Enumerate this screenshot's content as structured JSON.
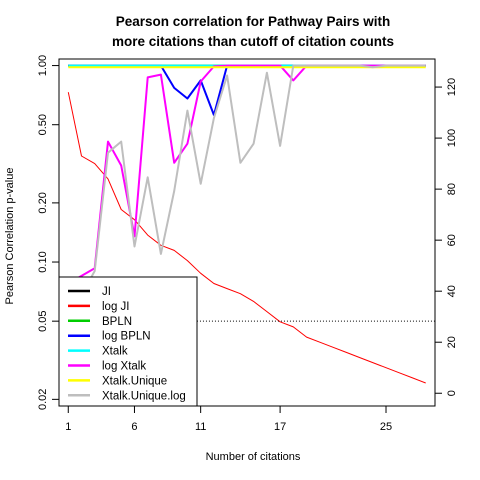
{
  "chart_data": {
    "type": "line",
    "title_lines": [
      "Pearson correlation for Pathway Pairs with",
      "more citations than cutoff of citation counts"
    ],
    "xlabel": "Number of citations",
    "ylabel": "Pearson Correlation p-value",
    "x_ticks": [
      1,
      6,
      11,
      17,
      25
    ],
    "x_tick_labels": [
      "1",
      "6",
      "11",
      "17",
      "25"
    ],
    "y_ticks": [
      0.02,
      0.05,
      0.1,
      0.2,
      0.5,
      1.0
    ],
    "y_tick_labels": [
      "0.02",
      "0.05",
      "0.10",
      "0.20",
      "0.50",
      "1.00"
    ],
    "y_scale": "log",
    "y_range": [
      0.0185,
      1.08
    ],
    "x_range": [
      0.3,
      28.7
    ],
    "y2_ticks": [
      0,
      20,
      40,
      60,
      80,
      100,
      120
    ],
    "y2_tick_labels": [
      "0",
      "20",
      "40",
      "60",
      "80",
      "100",
      "120"
    ],
    "y2_range": [
      -5,
      131
    ],
    "threshold": {
      "y": 0.05,
      "x_from": 8,
      "style": "dotted"
    },
    "x": [
      1,
      2,
      3,
      4,
      5,
      6,
      7,
      8,
      9,
      10,
      11,
      12,
      13,
      14,
      15,
      16,
      17,
      18,
      19,
      20,
      21,
      22,
      23,
      24,
      25,
      26,
      27,
      28
    ],
    "series": [
      {
        "name": "JI",
        "color": "#000000",
        "width": 2,
        "values": [
          1.0,
          1.0,
          1.0,
          1.0,
          1.0,
          1.0,
          1.0,
          1.0,
          1.0,
          1.0,
          1.0,
          1.0,
          1.0,
          1.0,
          1.0,
          1.0,
          1.0,
          1.0,
          1.0,
          1.0,
          1.0,
          1.0,
          1.0,
          1.0,
          1.0,
          1.0,
          1.0,
          1.0
        ]
      },
      {
        "name": "log JI",
        "color": "#ff0000",
        "width": 1,
        "axis": "right",
        "values": [
          118,
          93,
          90,
          84,
          72,
          68,
          62,
          58,
          56,
          52,
          47,
          43,
          41,
          39,
          36,
          32,
          28,
          26,
          22,
          20,
          18,
          16,
          14,
          12,
          10,
          8,
          6,
          4
        ]
      },
      {
        "name": "BPLN",
        "color": "#00cd00",
        "width": 2,
        "values": [
          1.0,
          1.0,
          1.0,
          1.0,
          1.0,
          1.0,
          1.0,
          1.0,
          1.0,
          1.0,
          1.0,
          1.0,
          1.0,
          1.0,
          1.0,
          1.0,
          1.0,
          1.0,
          1.0,
          1.0,
          1.0,
          1.0,
          1.0,
          1.0,
          1.0,
          1.0,
          1.0,
          1.0
        ]
      },
      {
        "name": "log BPLN",
        "color": "#0000ff",
        "width": 2,
        "values": [
          1.0,
          1.0,
          1.0,
          1.0,
          1.0,
          1.0,
          1.0,
          1.0,
          0.77,
          0.68,
          0.84,
          0.56,
          1.0,
          1.0,
          1.0,
          1.0,
          1.0,
          1.0,
          1.0,
          1.0,
          1.0,
          1.0,
          1.0,
          1.0,
          1.0,
          1.0,
          1.0,
          1.0
        ]
      },
      {
        "name": "Xtalk",
        "color": "#00ffff",
        "width": 2,
        "values": [
          1.0,
          1.0,
          1.0,
          1.0,
          1.0,
          1.0,
          1.0,
          1.0,
          1.0,
          1.0,
          1.0,
          1.0,
          1.0,
          1.0,
          1.0,
          1.0,
          1.0,
          1.0,
          1.0,
          1.0,
          1.0,
          1.0,
          1.0,
          1.0,
          1.0,
          1.0,
          1.0,
          1.0
        ]
      },
      {
        "name": "log Xtalk",
        "color": "#ff00ff",
        "width": 2,
        "values": [
          0.078,
          0.085,
          0.093,
          0.41,
          0.31,
          0.135,
          0.87,
          0.9,
          0.32,
          0.4,
          0.83,
          0.99,
          1.0,
          1.0,
          1.0,
          1.0,
          1.0,
          0.84,
          1.0,
          1.0,
          1.0,
          1.0,
          1.0,
          1.0,
          1.0,
          1.0,
          1.0,
          1.0
        ]
      },
      {
        "name": "Xtalk.Unique",
        "color": "#ffff00",
        "width": 2,
        "values": [
          0.98,
          0.98,
          0.98,
          0.98,
          0.98,
          0.98,
          0.98,
          0.98,
          0.98,
          0.98,
          0.98,
          0.98,
          0.98,
          0.98,
          0.98,
          0.98,
          0.98,
          0.98,
          0.98,
          0.98,
          0.98,
          0.98,
          0.98,
          0.98,
          0.98,
          0.98,
          0.98,
          0.98
        ]
      },
      {
        "name": "Xtalk.Unique.log",
        "color": "#bebebe",
        "width": 2,
        "values": [
          0.062,
          0.068,
          0.09,
          0.36,
          0.41,
          0.12,
          0.27,
          0.11,
          0.23,
          0.59,
          0.25,
          0.54,
          0.89,
          0.32,
          0.4,
          0.92,
          0.39,
          1.0,
          1.0,
          1.0,
          1.0,
          1.0,
          1.0,
          0.98,
          1.0,
          1.0,
          1.0,
          1.0
        ]
      }
    ],
    "legend_placement": "bottom-left"
  }
}
